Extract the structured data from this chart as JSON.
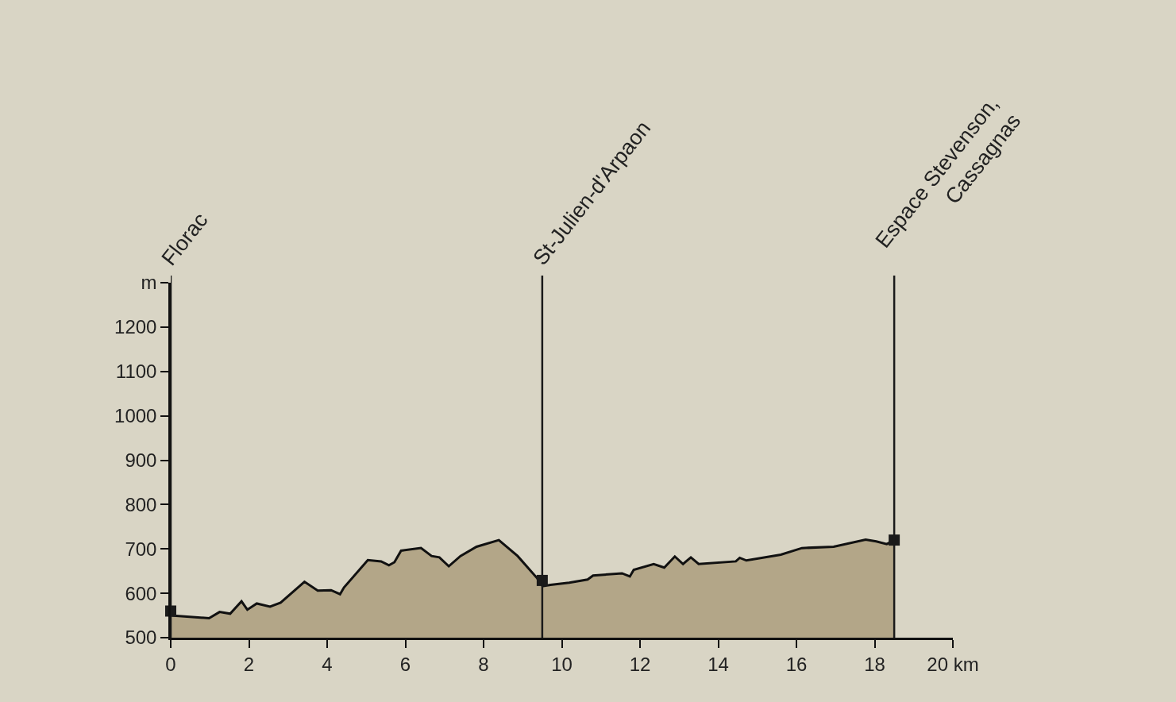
{
  "chart_data": {
    "type": "area",
    "series": [
      {
        "color": "#b3a688",
        "x": [
          0,
          0.98,
          1.25,
          1.52,
          1.81,
          1.96,
          2.2,
          2.54,
          2.81,
          3.42,
          3.76,
          4.1,
          4.33,
          4.43,
          5.04,
          5.38,
          5.58,
          5.72,
          5.89,
          6.4,
          6.67,
          6.87,
          7.11,
          7.41,
          7.82,
          8.39,
          8.87,
          9.37,
          9.51,
          9.71,
          10.19,
          10.66,
          10.8,
          11.54,
          11.74,
          11.84,
          12.35,
          12.62,
          12.89,
          13.1,
          13.3,
          13.5,
          14.45,
          14.55,
          14.72,
          15.6,
          16.14,
          16.95,
          17.77,
          18.04,
          18.31,
          18.5
        ],
        "values": [
          550,
          544,
          558,
          554,
          582,
          563,
          577,
          570,
          579,
          626,
          606,
          607,
          598,
          613,
          675,
          672,
          663,
          670,
          696,
          702,
          684,
          681,
          661,
          684,
          705,
          720,
          684,
          634,
          616,
          619,
          624,
          631,
          640,
          645,
          638,
          653,
          666,
          658,
          683,
          666,
          681,
          666,
          672,
          680,
          674,
          687,
          702,
          705,
          721,
          717,
          711,
          720
        ]
      },
      {
        "type": "scatter",
        "color": "#1a1a1a",
        "marker": "square",
        "x": [
          0,
          9.5,
          18.5
        ],
        "values": [
          560,
          629,
          720
        ]
      }
    ],
    "xlim": [
      0,
      20
    ],
    "xticks": [
      0,
      2,
      4,
      6,
      8,
      10,
      12,
      14,
      16,
      18,
      {
        "value": 20,
        "label": "20 km"
      }
    ],
    "ylim": [
      500,
      1300
    ],
    "yticks": [
      500,
      600,
      700,
      800,
      900,
      1000,
      1100,
      1200,
      {
        "value": 1300,
        "label": "m"
      }
    ],
    "grid": false,
    "legend": false,
    "ref_lines": [
      {
        "axis": "x",
        "value": 0,
        "color": "#1a1a1a",
        "label": "Florac"
      },
      {
        "axis": "x",
        "value": 9.5,
        "color": "#1a1a1a",
        "label": "St-Julien-d'Arpaon"
      },
      {
        "axis": "x",
        "value": 18.5,
        "color": "#1a1a1a",
        "label": "Espace Stevenson,\nCassagnas"
      }
    ]
  }
}
